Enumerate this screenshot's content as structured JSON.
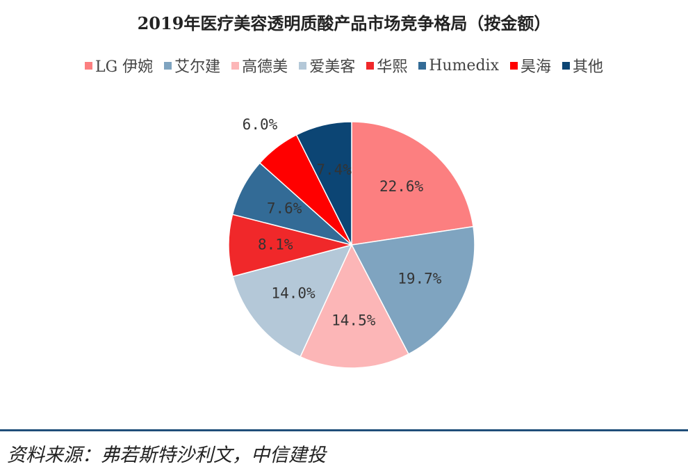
{
  "chart_data": {
    "type": "pie",
    "title": "2019年医疗美容透明质酸产品市场竞争格局（按金额）",
    "categories": [
      "LG 伊婉",
      "艾尔建",
      "高德美",
      "爱美客",
      "华熙",
      "Humedix",
      "昊海",
      "其他"
    ],
    "values": [
      22.6,
      19.7,
      14.5,
      14.0,
      8.1,
      7.6,
      6.0,
      7.4
    ],
    "labels": [
      "22.6%",
      "19.7%",
      "14.5%",
      "14.0%",
      "8.1%",
      "7.6%",
      "6.0%",
      "7.4%"
    ],
    "colors": [
      "#fc7f80",
      "#7fa4c0",
      "#fcb6b7",
      "#b4c8d8",
      "#f0282a",
      "#336b96",
      "#ff0000",
      "#0c4574"
    ],
    "legend_position": "top"
  },
  "source": "资料来源：弗若斯特沙利文，中信建投"
}
